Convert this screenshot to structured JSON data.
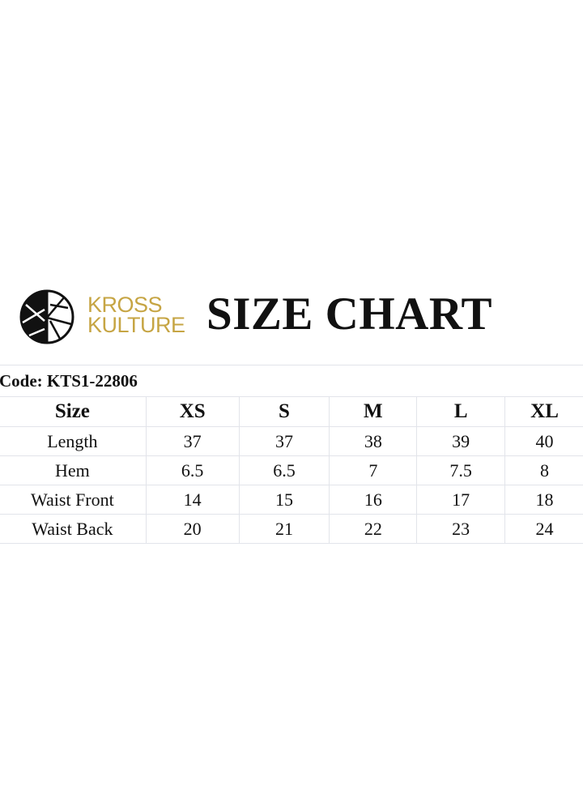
{
  "brand": {
    "line1": "KROSS",
    "line2": "KULTURE",
    "color": "#c6a544",
    "logo_icon": "kross-kulture-circle-logo"
  },
  "title": "SIZE CHART",
  "code_label": "Code: KTS1-22806",
  "table": {
    "headers": [
      "Size",
      "XS",
      "S",
      "M",
      "L",
      "XL"
    ],
    "rows": [
      [
        "Length",
        "37",
        "37",
        "38",
        "39",
        "40"
      ],
      [
        "Hem",
        "6.5",
        "6.5",
        "7",
        "7.5",
        "8"
      ],
      [
        "Waist Front",
        "14",
        "15",
        "16",
        "17",
        "18"
      ],
      [
        "Waist Back",
        "20",
        "21",
        "22",
        "23",
        "24"
      ]
    ]
  }
}
